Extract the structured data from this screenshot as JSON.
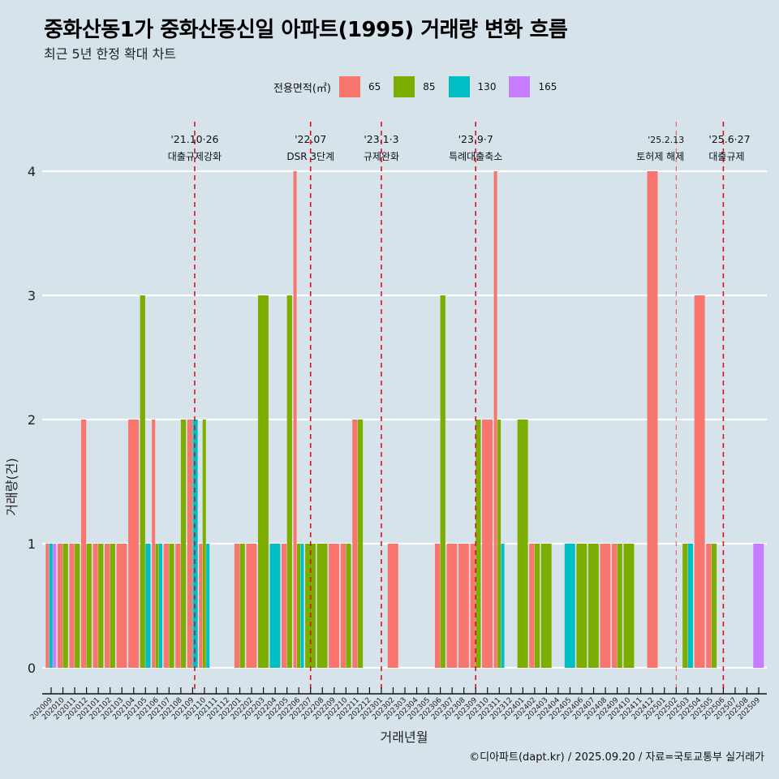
{
  "header": {
    "title": "중화산동1가 중화산동신일 아파트(1995) 거래량 변화 흐름",
    "subtitle": "최근 5년 한정 확대 차트"
  },
  "legend": {
    "title": "전용면적(㎡)",
    "items": [
      {
        "label": "65",
        "color": "#F8766D"
      },
      {
        "label": "85",
        "color": "#7CAE00"
      },
      {
        "label": "130",
        "color": "#00BFC4"
      },
      {
        "label": "165",
        "color": "#C77CFF"
      }
    ]
  },
  "footer": "©디아파트(dapt.kr) / 2025.09.20 / 자료=국토교통부 실거래가",
  "chart_data": {
    "type": "bar",
    "title": "중화산동1가 중화산동신일 아파트(1995) 거래량 변화 흐름",
    "subtitle": "최근 5년 한정 확대 차트",
    "xlabel": "거래년월",
    "ylabel": "거래량(건)",
    "ylim": [
      0,
      4
    ],
    "yticks": [
      "0",
      "1",
      "2",
      "3",
      "4"
    ],
    "grid": true,
    "legend_position": "top",
    "categories": [
      "202009",
      "202010",
      "202011",
      "202012",
      "202101",
      "202102",
      "202103",
      "202104",
      "202105",
      "202106",
      "202107",
      "202108",
      "202109",
      "202110",
      "202111",
      "202112",
      "202201",
      "202202",
      "202203",
      "202204",
      "202205",
      "202206",
      "202207",
      "202208",
      "202209",
      "202210",
      "202211",
      "202212",
      "202301",
      "202302",
      "202303",
      "202304",
      "202305",
      "202306",
      "202307",
      "202308",
      "202309",
      "202310",
      "202311",
      "202312",
      "202401",
      "202402",
      "202403",
      "202404",
      "202405",
      "202406",
      "202407",
      "202408",
      "202409",
      "202410",
      "202411",
      "202412",
      "202501",
      "202502",
      "202503",
      "202504",
      "202505",
      "202506",
      "202507",
      "202508",
      "202509"
    ],
    "series": [
      {
        "name": "65",
        "color": "#F8766D",
        "values": [
          1,
          1,
          1,
          2,
          1,
          1,
          1,
          2,
          0,
          2,
          1,
          1,
          2,
          1,
          0,
          0,
          1,
          1,
          0,
          0,
          1,
          4,
          0,
          0,
          1,
          1,
          2,
          0,
          0,
          1,
          0,
          0,
          0,
          1,
          1,
          1,
          1,
          2,
          4,
          0,
          0,
          1,
          0,
          0,
          0,
          0,
          0,
          1,
          1,
          0,
          0,
          4,
          0,
          0,
          0,
          3,
          1,
          0,
          0,
          0,
          0
        ]
      },
      {
        "name": "85",
        "color": "#7CAE00",
        "values": [
          0,
          1,
          1,
          1,
          1,
          1,
          0,
          0,
          3,
          1,
          1,
          2,
          0,
          2,
          0,
          0,
          1,
          0,
          3,
          0,
          3,
          1,
          1,
          1,
          0,
          1,
          2,
          0,
          0,
          0,
          0,
          0,
          0,
          3,
          0,
          0,
          2,
          0,
          2,
          0,
          2,
          1,
          1,
          0,
          0,
          1,
          1,
          0,
          1,
          1,
          0,
          0,
          0,
          0,
          1,
          0,
          1,
          0,
          0,
          0,
          0
        ]
      },
      {
        "name": "130",
        "color": "#00BFC4",
        "values": [
          1,
          0,
          0,
          0,
          0,
          0,
          0,
          0,
          1,
          1,
          0,
          0,
          2,
          1,
          0,
          0,
          0,
          0,
          0,
          1,
          0,
          1,
          0,
          0,
          0,
          0,
          0,
          0,
          0,
          0,
          0,
          0,
          0,
          0,
          0,
          0,
          0,
          0,
          1,
          0,
          0,
          0,
          0,
          0,
          1,
          0,
          0,
          0,
          0,
          0,
          0,
          0,
          0,
          0,
          1,
          0,
          0,
          0,
          0,
          0,
          0
        ]
      },
      {
        "name": "165",
        "color": "#C77CFF",
        "values": [
          1,
          0,
          0,
          0,
          0,
          0,
          0,
          0,
          0,
          0,
          0,
          0,
          0,
          0,
          0,
          0,
          0,
          0,
          0,
          0,
          0,
          0,
          0,
          0,
          0,
          0,
          0,
          0,
          0,
          0,
          0,
          0,
          0,
          0,
          0,
          0,
          0,
          0,
          0,
          0,
          0,
          0,
          0,
          0,
          0,
          0,
          0,
          0,
          0,
          0,
          0,
          0,
          0,
          0,
          0,
          0,
          0,
          0,
          0,
          0,
          1
        ]
      }
    ],
    "annotations": [
      {
        "x": "202110",
        "date": "'21.10·26",
        "label": "대출규제강화",
        "style": "strong"
      },
      {
        "x": "202207",
        "date": "'22.07",
        "label": "DSR 3단계",
        "style": "strong"
      },
      {
        "x": "202301",
        "date": "'23.1·3",
        "label": "규제완화",
        "style": "strong"
      },
      {
        "x": "202309",
        "date": "'23.9·7",
        "label": "특례대출축소",
        "style": "strong"
      },
      {
        "x": "202502",
        "date": "'25.2.13",
        "label": "토허제 해제",
        "style": "light"
      },
      {
        "x": "202506",
        "date": "'25.6·27",
        "label": "대출규제",
        "style": "strong"
      }
    ]
  }
}
